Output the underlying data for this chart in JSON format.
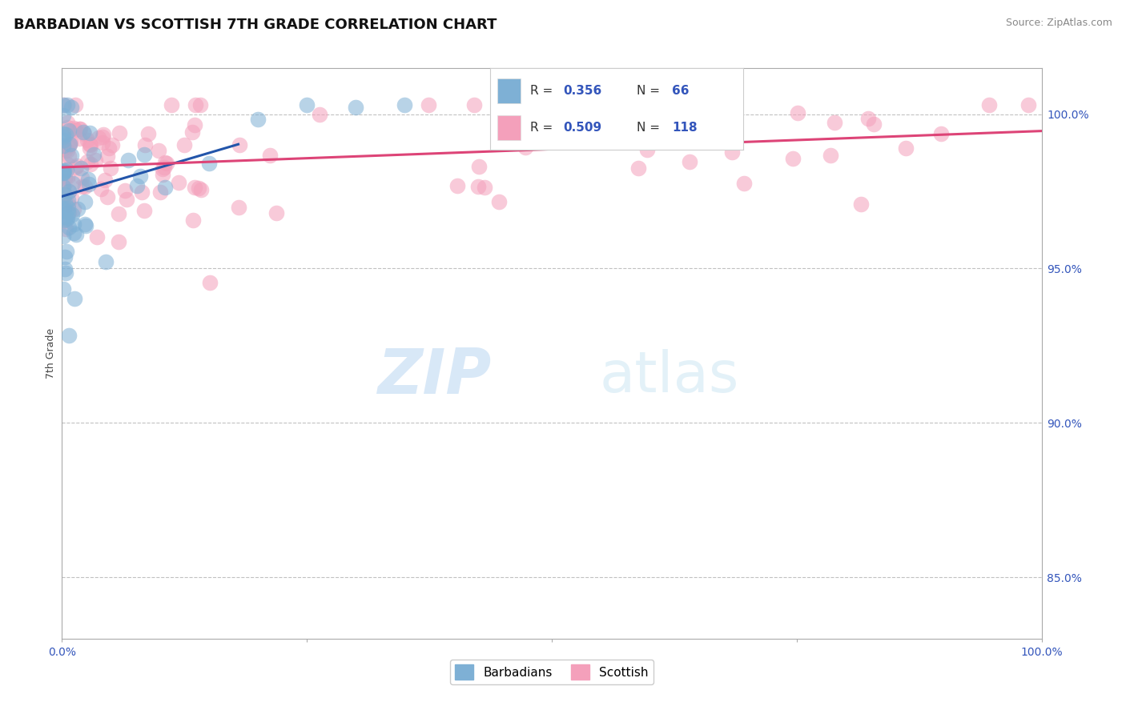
{
  "title": "BARBADIAN VS SCOTTISH 7TH GRADE CORRELATION CHART",
  "source": "Source: ZipAtlas.com",
  "ylabel": "7th Grade",
  "xlim": [
    0.0,
    100.0
  ],
  "ylim": [
    83.0,
    101.5
  ],
  "yticks": [
    85.0,
    90.0,
    95.0,
    100.0
  ],
  "ytick_labels": [
    "85.0%",
    "90.0%",
    "95.0%",
    "100.0%"
  ],
  "barbadian_R": 0.356,
  "barbadian_N": 66,
  "scottish_R": 0.509,
  "scottish_N": 118,
  "barbadian_color": "#7EB0D5",
  "scottish_color": "#F4A0BB",
  "barbadian_line_color": "#2255AA",
  "scottish_line_color": "#DD4477",
  "watermark_zip_color": "#AACCEE",
  "watermark_atlas_color": "#BBDDEE",
  "background_color": "#FFFFFF",
  "grid_color": "#BBBBBB",
  "title_fontsize": 13,
  "source_fontsize": 9,
  "tick_color": "#3355BB",
  "tick_fontsize": 10,
  "ylabel_fontsize": 9,
  "legend_R_color": "#3355BB",
  "legend_text_color": "#333333"
}
